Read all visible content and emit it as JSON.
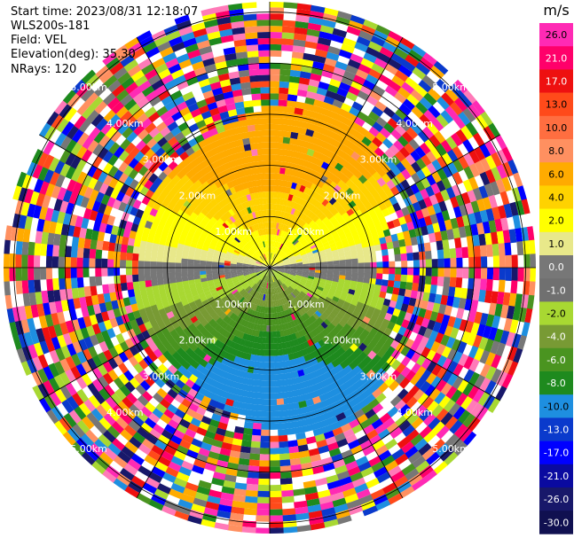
{
  "header": {
    "start_time": "Start time: 2023/08/31 12:18:07",
    "instrument": "WLS200s-181",
    "field": "Field: VEL",
    "elevation": "Elevation(deg): 35.30",
    "nrays": "NRays: 120"
  },
  "chart_data": {
    "type": "heatmap",
    "projection": "polar-ppi",
    "range_rings_km": [
      1,
      2,
      3,
      4,
      5
    ],
    "range_ring_labels": [
      "1.00km",
      "2.00km",
      "3.00km",
      "4.00km",
      "5.00km"
    ],
    "max_range_km": 5.2,
    "n_rays": 120,
    "spokes_deg": [
      0,
      30,
      60,
      90,
      120,
      150,
      180,
      210,
      240,
      270,
      300,
      330
    ],
    "grid": true,
    "colorbar": {
      "unit": "m/s",
      "placement": "right",
      "tick_labels": [
        "26.0",
        "21.0",
        "17.0",
        "13.0",
        "10.0",
        "8.0",
        "6.0",
        "4.0",
        "2.0",
        "1.0",
        "0.0",
        "-1.0",
        "-2.0",
        "-4.0",
        "-6.0",
        "-8.0",
        "-10.0",
        "-13.0",
        "-17.0",
        "-21.0",
        "-26.0",
        "-30.0"
      ],
      "colors": [
        "#ff2ab4",
        "#ff006a",
        "#ee1010",
        "#ff4a1a",
        "#ff6e40",
        "#ff9060",
        "#ffab00",
        "#ffd200",
        "#ffff00",
        "#e8e88a",
        "#777777",
        "#707070",
        "#a8d832",
        "#789a34",
        "#4a9420",
        "#1e8a1e",
        "#1e8fe0",
        "#0a3acc",
        "#0000ff",
        "#0a0aa0",
        "#18186a",
        "#101050"
      ]
    }
  }
}
